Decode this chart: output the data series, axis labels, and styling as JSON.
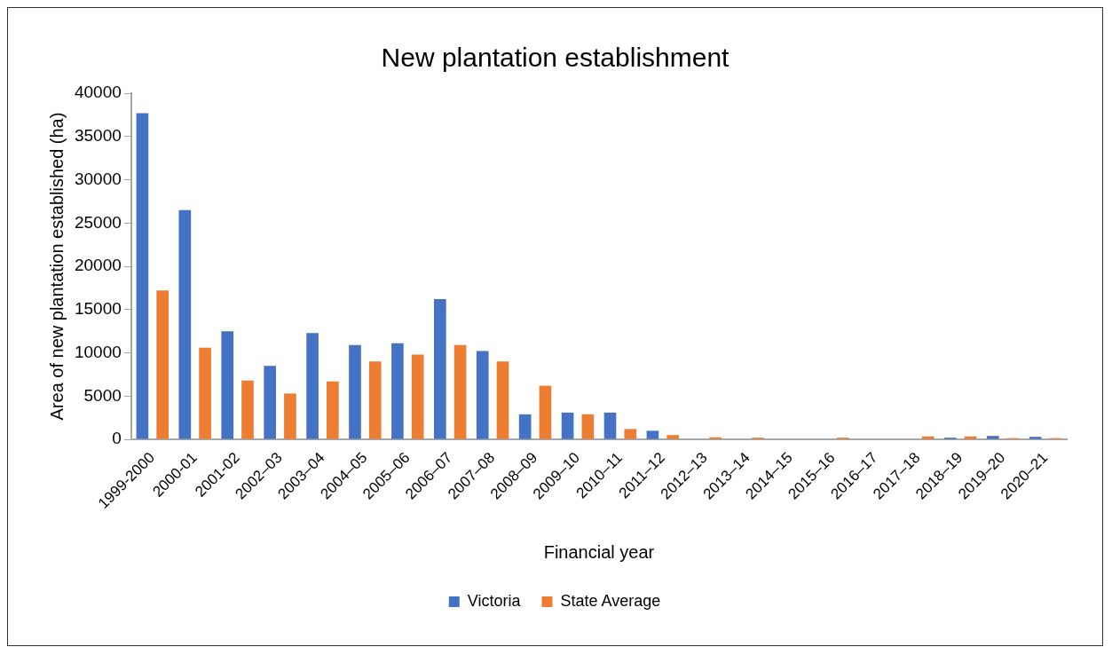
{
  "chart_data": {
    "type": "bar",
    "title": "New plantation establishment",
    "xlabel": "Financial year",
    "ylabel": "Area of new plantation established (ha)",
    "categories": [
      "1999-2000",
      "2000-01",
      "2001-02",
      "2002–03",
      "2003–04",
      "2004–05",
      "2005–06",
      "2006–07",
      "2007–08",
      "2008–09",
      "2009–10",
      "2010–11",
      "2011–12",
      "2012–13",
      "2013–14",
      "2014–15",
      "2015–16",
      "2016–17",
      "2017–18",
      "2018–19",
      "2019–20",
      "2020–21"
    ],
    "series": [
      {
        "name": "Victoria",
        "color": "#4472c4",
        "values": [
          37700,
          26500,
          12500,
          8500,
          12300,
          10900,
          11100,
          16200,
          10200,
          2900,
          3100,
          3100,
          1000,
          0,
          0,
          0,
          0,
          0,
          0,
          200,
          400,
          300
        ]
      },
      {
        "name": "State Average",
        "color": "#ed7d31",
        "values": [
          17200,
          10600,
          6800,
          5300,
          6700,
          9000,
          9800,
          10900,
          9000,
          6200,
          2900,
          1200,
          500,
          250,
          200,
          50,
          200,
          0,
          350,
          350,
          150,
          150
        ]
      }
    ],
    "ylim": [
      0,
      40000
    ],
    "yticks": [
      0,
      5000,
      10000,
      15000,
      20000,
      25000,
      30000,
      35000,
      40000
    ],
    "grid": false,
    "legend": "bottom"
  }
}
